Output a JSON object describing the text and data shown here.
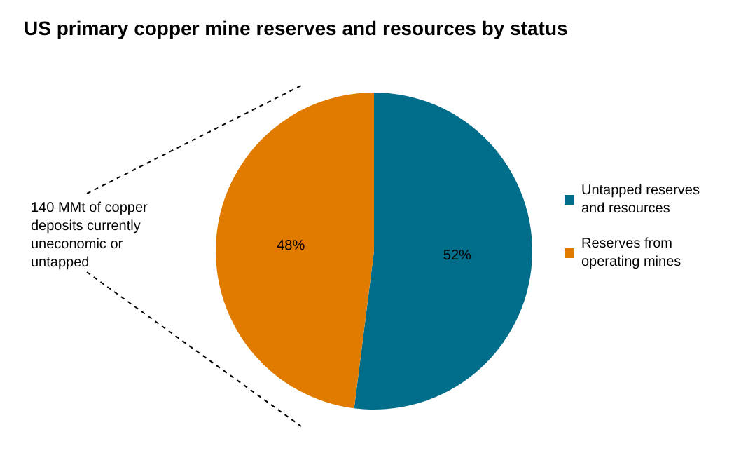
{
  "chart_data": {
    "type": "pie",
    "title": "US primary copper mine reserves and resources by status",
    "categories": [
      "Untapped reserves and resources",
      "Reserves from operating mines"
    ],
    "values": [
      52,
      48
    ],
    "colors": [
      "#006d8a",
      "#e07b00"
    ],
    "value_labels": [
      "52%",
      "48%"
    ],
    "legend": "right",
    "annotations": [
      "140 MMt of copper deposits currently uneconomic or untapped"
    ]
  }
}
